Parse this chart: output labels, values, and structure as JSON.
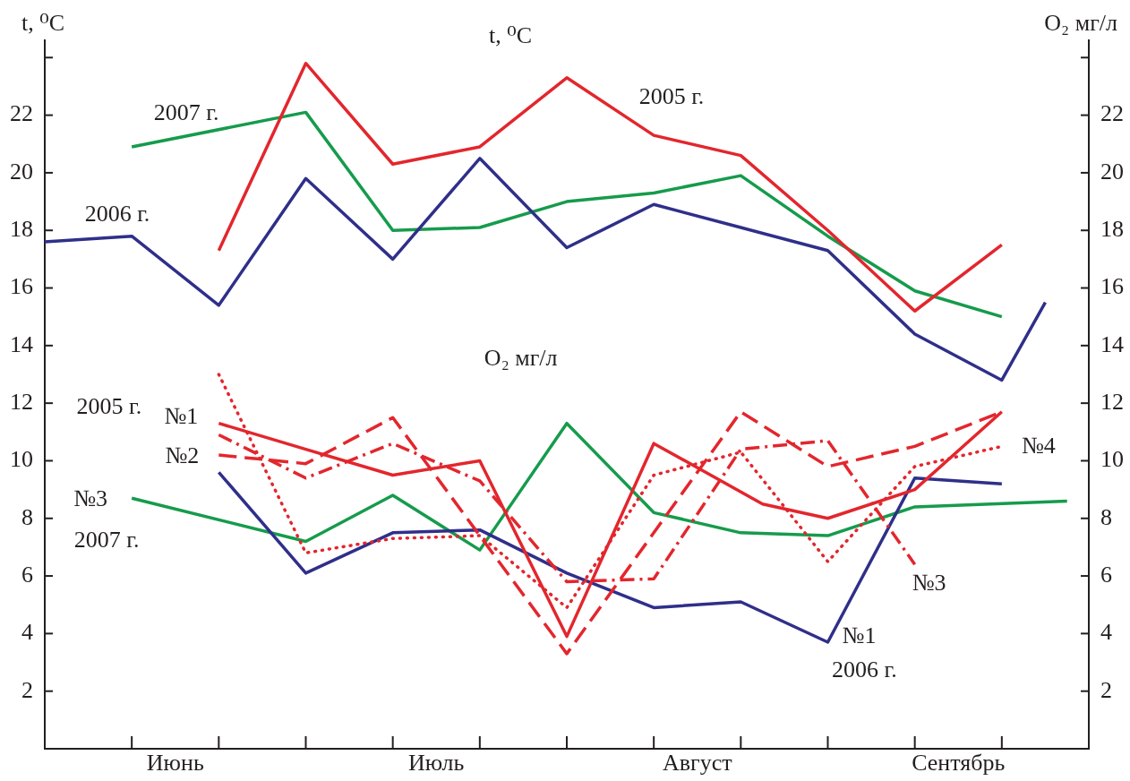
{
  "chart_data": {
    "type": "line",
    "categories": [
      null,
      null,
      null,
      null,
      null,
      null,
      "Июнь",
      null,
      null,
      null,
      null,
      null,
      null,
      null,
      null,
      null,
      null,
      null,
      "Июль",
      null,
      null,
      null,
      null,
      null,
      null,
      null,
      null,
      null,
      null,
      null,
      "Август",
      null,
      null,
      null,
      null,
      null,
      null,
      null,
      null,
      null,
      null,
      null,
      "Сентябрь",
      null,
      null,
      null,
      null,
      null,
      null
    ],
    "ylabel": "t, ⁰C",
    "y2label": "O₂ мг/л",
    "ylim": [
      0,
      24.6
    ],
    "yticks": [
      2,
      4,
      6,
      8,
      10,
      12,
      14,
      16,
      18,
      20,
      22,
      {
        "value": 24,
        "label": null
      }
    ],
    "y2lim": [
      0,
      24.6
    ],
    "y2ticks": [
      2,
      4,
      6,
      8,
      10,
      12,
      14,
      16,
      18,
      20,
      22,
      {
        "value": 24,
        "label": null
      }
    ],
    "series": [
      {
        "name": "2005 г.",
        "color": "#e3262d",
        "line_style": "solid",
        "values": [
          null,
          null,
          null,
          null,
          null,
          null,
          null,
          null,
          17.3,
          null,
          null,
          null,
          23.8,
          null,
          null,
          null,
          20.3,
          null,
          null,
          null,
          20.9,
          null,
          null,
          null,
          23.3,
          null,
          null,
          null,
          21.3,
          null,
          null,
          null,
          20.6,
          null,
          null,
          null,
          18.0,
          null,
          null,
          null,
          15.2,
          null,
          null,
          null,
          17.5,
          null,
          null,
          null,
          null
        ]
      },
      {
        "name": "2006 г.",
        "color": "#2f2f8a",
        "line_style": "solid",
        "values": [
          17.6,
          null,
          null,
          null,
          17.8,
          null,
          null,
          null,
          15.4,
          null,
          null,
          null,
          19.8,
          null,
          null,
          null,
          17.0,
          null,
          null,
          null,
          20.5,
          null,
          null,
          null,
          17.4,
          null,
          null,
          null,
          18.9,
          null,
          null,
          null,
          18.1,
          null,
          null,
          null,
          17.3,
          null,
          null,
          null,
          14.4,
          null,
          null,
          null,
          12.8,
          null,
          15.5,
          null,
          null
        ]
      },
      {
        "name": "2007 г.",
        "color": "#169b4c",
        "line_style": "solid",
        "values": [
          null,
          null,
          null,
          null,
          20.9,
          null,
          null,
          null,
          null,
          null,
          null,
          null,
          22.1,
          null,
          null,
          null,
          18.0,
          null,
          null,
          null,
          18.1,
          null,
          null,
          null,
          19.0,
          null,
          null,
          null,
          19.3,
          null,
          null,
          null,
          19.9,
          null,
          null,
          null,
          17.8,
          null,
          null,
          null,
          15.9,
          null,
          null,
          null,
          15.0,
          null,
          null,
          null,
          null
        ]
      },
      {
        "name": "№1",
        "color": "#e3262d",
        "line_style": "solid",
        "values": [
          null,
          null,
          null,
          null,
          null,
          null,
          null,
          null,
          11.3,
          null,
          null,
          null,
          10.4,
          null,
          null,
          null,
          9.5,
          null,
          null,
          null,
          10.0,
          null,
          null,
          null,
          3.9,
          null,
          null,
          null,
          10.6,
          null,
          null,
          null,
          null,
          8.5,
          null,
          null,
          8.0,
          null,
          null,
          null,
          9.0,
          null,
          null,
          null,
          11.7,
          null,
          null,
          null,
          null
        ]
      },
      {
        "name": "№2",
        "color": "#e3262d",
        "line_style": "dashed",
        "values": [
          null,
          null,
          null,
          null,
          null,
          null,
          null,
          null,
          10.2,
          null,
          null,
          null,
          9.9,
          null,
          null,
          null,
          11.5,
          null,
          null,
          null,
          null,
          null,
          null,
          null,
          3.3,
          null,
          null,
          null,
          null,
          null,
          null,
          null,
          11.7,
          null,
          null,
          null,
          9.8,
          null,
          null,
          null,
          10.5,
          null,
          null,
          null,
          11.7,
          null,
          null,
          null,
          null
        ]
      },
      {
        "name": "№3",
        "color": "#e3262d",
        "line_style": "dashdot",
        "values": [
          null,
          null,
          null,
          null,
          null,
          null,
          null,
          null,
          10.9,
          null,
          null,
          null,
          9.4,
          null,
          null,
          null,
          10.6,
          null,
          null,
          null,
          9.3,
          null,
          null,
          null,
          5.8,
          null,
          null,
          null,
          5.9,
          null,
          null,
          null,
          10.4,
          null,
          null,
          null,
          10.7,
          null,
          null,
          null,
          6.4,
          null,
          null,
          null,
          null,
          null,
          null,
          null,
          null
        ]
      },
      {
        "name": "№4",
        "color": "#e3262d",
        "line_style": "dotted",
        "values": [
          null,
          null,
          null,
          null,
          null,
          null,
          null,
          null,
          13.0,
          null,
          null,
          null,
          6.8,
          null,
          null,
          null,
          7.3,
          null,
          null,
          null,
          7.4,
          null,
          null,
          null,
          4.9,
          null,
          null,
          null,
          9.5,
          null,
          null,
          null,
          10.3,
          null,
          null,
          null,
          6.5,
          null,
          null,
          null,
          9.8,
          null,
          null,
          null,
          10.5,
          null,
          null,
          null,
          null
        ]
      },
      {
        "name": "№1",
        "color": "#2f2f8a",
        "line_style": "solid",
        "values": [
          null,
          null,
          null,
          null,
          null,
          null,
          null,
          null,
          9.6,
          null,
          null,
          null,
          6.1,
          null,
          null,
          null,
          7.5,
          null,
          null,
          null,
          7.6,
          null,
          null,
          null,
          6.1,
          null,
          null,
          null,
          4.9,
          null,
          null,
          null,
          5.1,
          null,
          null,
          null,
          3.7,
          null,
          null,
          null,
          9.4,
          null,
          null,
          null,
          9.2,
          null,
          null,
          null,
          null
        ]
      },
      {
        "name": "№3",
        "color": "#169b4c",
        "line_style": "solid",
        "values": [
          null,
          null,
          null,
          null,
          8.7,
          null,
          null,
          null,
          null,
          null,
          null,
          null,
          7.2,
          null,
          null,
          null,
          8.8,
          null,
          null,
          null,
          6.9,
          null,
          null,
          null,
          11.3,
          null,
          null,
          null,
          8.2,
          null,
          null,
          null,
          7.5,
          null,
          null,
          null,
          7.4,
          null,
          null,
          null,
          8.4,
          null,
          null,
          null,
          null,
          null,
          null,
          8.6,
          null
        ]
      }
    ],
    "annotations": [
      "t, ⁰C",
      "O₂ мг/л",
      "2005 г.",
      "2007 г.",
      "2006 г."
    ]
  }
}
